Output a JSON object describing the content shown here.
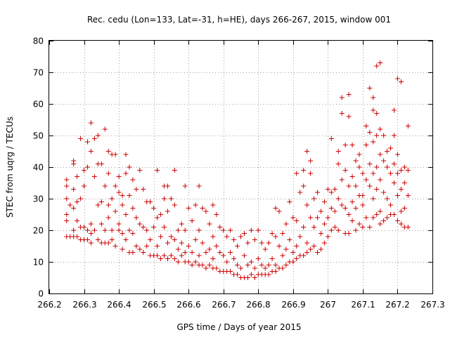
{
  "chart_data": {
    "type": "scatter",
    "title": "Rec. cedu (Lon=133, Lat=-31, h=HE), days 266-267, 2015, window 001",
    "xlabel": "GPS time / Days of year 2015",
    "ylabel": "STEC from uqrg / TECUs",
    "xlim": [
      266.2,
      267.3
    ],
    "ylim": [
      0,
      80
    ],
    "xticks": [
      266.2,
      266.3,
      266.4,
      266.5,
      266.6,
      266.7,
      266.8,
      266.9,
      267.0,
      267.1,
      267.2,
      267.3
    ],
    "xtick_labels": [
      "266.2",
      "266.3",
      "266.4",
      "266.5",
      "266.6",
      "266.7",
      "266.8",
      "266.9",
      "267",
      "267.1",
      "267.2",
      "267.3"
    ],
    "yticks": [
      0,
      10,
      20,
      30,
      40,
      50,
      60,
      70,
      80
    ],
    "ytick_labels": [
      "0",
      "10",
      "20",
      "30",
      "40",
      "50",
      "60",
      "70",
      "80"
    ],
    "grid": true,
    "marker": "+",
    "color": "#cc0000",
    "points": [
      [
        266.25,
        36
      ],
      [
        266.25,
        34
      ],
      [
        266.25,
        30
      ],
      [
        266.25,
        25
      ],
      [
        266.25,
        23
      ],
      [
        266.25,
        18
      ],
      [
        266.26,
        18
      ],
      [
        266.26,
        28
      ],
      [
        266.27,
        41
      ],
      [
        266.27,
        42
      ],
      [
        266.27,
        33
      ],
      [
        266.27,
        27
      ],
      [
        266.27,
        20
      ],
      [
        266.27,
        18
      ],
      [
        266.28,
        18
      ],
      [
        266.28,
        29
      ],
      [
        266.28,
        37
      ],
      [
        266.28,
        23
      ],
      [
        266.29,
        49
      ],
      [
        266.29,
        30
      ],
      [
        266.29,
        17
      ],
      [
        266.29,
        21
      ],
      [
        266.3,
        39
      ],
      [
        266.3,
        34
      ],
      [
        266.3,
        21
      ],
      [
        266.3,
        17
      ],
      [
        266.31,
        48
      ],
      [
        266.31,
        40
      ],
      [
        266.31,
        20
      ],
      [
        266.31,
        17
      ],
      [
        266.32,
        54
      ],
      [
        266.32,
        45
      ],
      [
        266.32,
        22
      ],
      [
        266.32,
        19
      ],
      [
        266.32,
        16
      ],
      [
        266.33,
        49
      ],
      [
        266.33,
        37
      ],
      [
        266.33,
        20
      ],
      [
        266.34,
        50
      ],
      [
        266.34,
        41
      ],
      [
        266.34,
        28
      ],
      [
        266.34,
        17
      ],
      [
        266.35,
        41
      ],
      [
        266.35,
        29
      ],
      [
        266.35,
        22
      ],
      [
        266.35,
        16
      ],
      [
        266.36,
        52
      ],
      [
        266.36,
        34
      ],
      [
        266.36,
        20
      ],
      [
        266.36,
        16
      ],
      [
        266.37,
        45
      ],
      [
        266.37,
        38
      ],
      [
        266.37,
        28
      ],
      [
        266.37,
        24
      ],
      [
        266.37,
        16
      ],
      [
        266.38,
        44
      ],
      [
        266.38,
        30
      ],
      [
        266.38,
        20
      ],
      [
        266.38,
        17
      ],
      [
        266.39,
        44
      ],
      [
        266.39,
        34
      ],
      [
        266.39,
        26
      ],
      [
        266.39,
        15
      ],
      [
        266.4,
        37
      ],
      [
        266.4,
        32
      ],
      [
        266.4,
        22
      ],
      [
        266.4,
        20
      ],
      [
        266.41,
        31
      ],
      [
        266.41,
        28
      ],
      [
        266.41,
        19
      ],
      [
        266.41,
        14
      ],
      [
        266.42,
        44
      ],
      [
        266.42,
        38
      ],
      [
        266.42,
        25
      ],
      [
        266.42,
        17
      ],
      [
        266.43,
        40
      ],
      [
        266.43,
        31
      ],
      [
        266.43,
        20
      ],
      [
        266.43,
        13
      ],
      [
        266.44,
        36
      ],
      [
        266.44,
        27
      ],
      [
        266.44,
        19
      ],
      [
        266.44,
        13
      ],
      [
        266.45,
        33
      ],
      [
        266.45,
        24
      ],
      [
        266.45,
        15
      ],
      [
        266.46,
        39
      ],
      [
        266.46,
        22
      ],
      [
        266.46,
        14
      ],
      [
        266.47,
        33
      ],
      [
        266.47,
        21
      ],
      [
        266.47,
        13
      ],
      [
        266.48,
        29
      ],
      [
        266.48,
        20
      ],
      [
        266.48,
        15
      ],
      [
        266.49,
        29
      ],
      [
        266.49,
        17
      ],
      [
        266.49,
        12
      ],
      [
        266.5,
        27
      ],
      [
        266.5,
        21
      ],
      [
        266.5,
        12
      ],
      [
        266.51,
        39
      ],
      [
        266.51,
        24
      ],
      [
        266.51,
        15
      ],
      [
        266.51,
        12
      ],
      [
        266.52,
        25
      ],
      [
        266.52,
        18
      ],
      [
        266.52,
        11
      ],
      [
        266.53,
        34
      ],
      [
        266.53,
        30
      ],
      [
        266.53,
        21
      ],
      [
        266.53,
        12
      ],
      [
        266.54,
        34
      ],
      [
        266.54,
        26
      ],
      [
        266.54,
        16
      ],
      [
        266.54,
        11
      ],
      [
        266.55,
        30
      ],
      [
        266.55,
        18
      ],
      [
        266.55,
        12
      ],
      [
        266.56,
        39
      ],
      [
        266.56,
        28
      ],
      [
        266.56,
        17
      ],
      [
        266.56,
        11
      ],
      [
        266.57,
        20
      ],
      [
        266.57,
        14
      ],
      [
        266.57,
        10
      ],
      [
        266.58,
        22
      ],
      [
        266.58,
        16
      ],
      [
        266.58,
        12
      ],
      [
        266.59,
        34
      ],
      [
        266.59,
        20
      ],
      [
        266.59,
        13
      ],
      [
        266.59,
        10
      ],
      [
        266.6,
        27
      ],
      [
        266.6,
        15
      ],
      [
        266.6,
        10
      ],
      [
        266.61,
        23
      ],
      [
        266.61,
        13
      ],
      [
        266.61,
        9
      ],
      [
        266.62,
        28
      ],
      [
        266.62,
        17
      ],
      [
        266.62,
        10
      ],
      [
        266.63,
        34
      ],
      [
        266.63,
        20
      ],
      [
        266.63,
        12
      ],
      [
        266.63,
        9
      ],
      [
        266.64,
        27
      ],
      [
        266.64,
        16
      ],
      [
        266.64,
        9
      ],
      [
        266.65,
        26
      ],
      [
        266.65,
        13
      ],
      [
        266.65,
        8
      ],
      [
        266.66,
        22
      ],
      [
        266.66,
        14
      ],
      [
        266.66,
        9
      ],
      [
        266.67,
        28
      ],
      [
        266.67,
        18
      ],
      [
        266.67,
        11
      ],
      [
        266.67,
        8
      ],
      [
        266.68,
        25
      ],
      [
        266.68,
        15
      ],
      [
        266.68,
        8
      ],
      [
        266.69,
        21
      ],
      [
        266.69,
        13
      ],
      [
        266.69,
        7
      ],
      [
        266.7,
        20
      ],
      [
        266.7,
        12
      ],
      [
        266.7,
        7
      ],
      [
        266.71,
        18
      ],
      [
        266.71,
        10
      ],
      [
        266.71,
        7
      ],
      [
        266.72,
        20
      ],
      [
        266.72,
        13
      ],
      [
        266.72,
        7
      ],
      [
        266.73,
        17
      ],
      [
        266.73,
        11
      ],
      [
        266.73,
        6
      ],
      [
        266.74,
        15
      ],
      [
        266.74,
        9
      ],
      [
        266.74,
        6
      ],
      [
        266.75,
        18
      ],
      [
        266.75,
        8
      ],
      [
        266.75,
        5
      ],
      [
        266.76,
        19
      ],
      [
        266.76,
        12
      ],
      [
        266.76,
        5
      ],
      [
        266.77,
        16
      ],
      [
        266.77,
        9
      ],
      [
        266.77,
        5
      ],
      [
        266.78,
        20
      ],
      [
        266.78,
        10
      ],
      [
        266.78,
        6
      ],
      [
        266.79,
        17
      ],
      [
        266.79,
        8
      ],
      [
        266.79,
        5
      ],
      [
        266.8,
        20
      ],
      [
        266.8,
        11
      ],
      [
        266.8,
        6
      ],
      [
        266.81,
        16
      ],
      [
        266.81,
        9
      ],
      [
        266.81,
        6
      ],
      [
        266.82,
        14
      ],
      [
        266.82,
        8
      ],
      [
        266.82,
        6
      ],
      [
        266.83,
        16
      ],
      [
        266.83,
        9
      ],
      [
        266.83,
        6
      ],
      [
        266.84,
        19
      ],
      [
        266.84,
        11
      ],
      [
        266.84,
        7
      ],
      [
        266.85,
        27
      ],
      [
        266.85,
        18
      ],
      [
        266.85,
        9
      ],
      [
        266.85,
        7
      ],
      [
        266.86,
        26
      ],
      [
        266.86,
        15
      ],
      [
        266.86,
        8
      ],
      [
        266.87,
        19
      ],
      [
        266.87,
        12
      ],
      [
        266.87,
        8
      ],
      [
        266.88,
        22
      ],
      [
        266.88,
        14
      ],
      [
        266.88,
        9
      ],
      [
        266.89,
        29
      ],
      [
        266.89,
        17
      ],
      [
        266.89,
        10
      ],
      [
        266.9,
        24
      ],
      [
        266.9,
        13
      ],
      [
        266.9,
        10
      ],
      [
        266.91,
        38
      ],
      [
        266.91,
        23
      ],
      [
        266.91,
        15
      ],
      [
        266.91,
        11
      ],
      [
        266.92,
        32
      ],
      [
        266.92,
        18
      ],
      [
        266.92,
        12
      ],
      [
        266.93,
        39
      ],
      [
        266.93,
        34
      ],
      [
        266.93,
        21
      ],
      [
        266.93,
        12
      ],
      [
        266.94,
        45
      ],
      [
        266.94,
        28
      ],
      [
        266.94,
        16
      ],
      [
        266.94,
        13
      ],
      [
        266.95,
        42
      ],
      [
        266.95,
        38
      ],
      [
        266.95,
        24
      ],
      [
        266.95,
        14
      ],
      [
        266.96,
        30
      ],
      [
        266.96,
        21
      ],
      [
        266.96,
        15
      ],
      [
        266.97,
        32
      ],
      [
        266.97,
        24
      ],
      [
        266.97,
        13
      ],
      [
        266.98,
        26
      ],
      [
        266.98,
        19
      ],
      [
        266.98,
        14
      ],
      [
        266.99,
        29
      ],
      [
        266.99,
        22
      ],
      [
        266.99,
        16
      ],
      [
        267.0,
        33
      ],
      [
        267.0,
        24
      ],
      [
        267.0,
        18
      ],
      [
        267.01,
        49
      ],
      [
        267.01,
        32
      ],
      [
        267.01,
        27
      ],
      [
        267.01,
        20
      ],
      [
        267.02,
        33
      ],
      [
        267.02,
        26
      ],
      [
        267.02,
        21
      ],
      [
        267.03,
        45
      ],
      [
        267.03,
        41
      ],
      [
        267.03,
        30
      ],
      [
        267.03,
        20
      ],
      [
        267.04,
        62
      ],
      [
        267.04,
        57
      ],
      [
        267.04,
        36
      ],
      [
        267.04,
        28
      ],
      [
        267.05,
        47
      ],
      [
        267.05,
        39
      ],
      [
        267.05,
        27
      ],
      [
        267.05,
        19
      ],
      [
        267.06,
        63
      ],
      [
        267.06,
        56
      ],
      [
        267.06,
        34
      ],
      [
        267.06,
        25
      ],
      [
        267.06,
        19
      ],
      [
        267.07,
        47
      ],
      [
        267.07,
        37
      ],
      [
        267.07,
        29
      ],
      [
        267.07,
        23
      ],
      [
        267.08,
        42
      ],
      [
        267.08,
        34
      ],
      [
        267.08,
        27
      ],
      [
        267.08,
        20
      ],
      [
        267.09,
        44
      ],
      [
        267.09,
        40
      ],
      [
        267.09,
        31
      ],
      [
        267.09,
        22
      ],
      [
        267.1,
        38
      ],
      [
        267.1,
        31
      ],
      [
        267.1,
        28
      ],
      [
        267.1,
        21
      ],
      [
        267.11,
        53
      ],
      [
        267.11,
        47
      ],
      [
        267.11,
        36
      ],
      [
        267.11,
        24
      ],
      [
        267.12,
        65
      ],
      [
        267.12,
        51
      ],
      [
        267.12,
        41
      ],
      [
        267.12,
        34
      ],
      [
        267.12,
        21
      ],
      [
        267.13,
        62
      ],
      [
        267.13,
        58
      ],
      [
        267.13,
        48
      ],
      [
        267.13,
        38
      ],
      [
        267.13,
        30
      ],
      [
        267.13,
        24
      ],
      [
        267.14,
        72
      ],
      [
        267.14,
        57
      ],
      [
        267.14,
        50
      ],
      [
        267.14,
        40
      ],
      [
        267.14,
        33
      ],
      [
        267.14,
        25
      ],
      [
        267.15,
        73
      ],
      [
        267.15,
        52
      ],
      [
        267.15,
        44
      ],
      [
        267.15,
        36
      ],
      [
        267.15,
        26
      ],
      [
        267.15,
        22
      ],
      [
        267.16,
        50
      ],
      [
        267.16,
        42
      ],
      [
        267.16,
        32
      ],
      [
        267.16,
        23
      ],
      [
        267.17,
        45
      ],
      [
        267.17,
        40
      ],
      [
        267.17,
        30
      ],
      [
        267.17,
        24
      ],
      [
        267.18,
        46
      ],
      [
        267.18,
        38
      ],
      [
        267.18,
        28
      ],
      [
        267.18,
        25
      ],
      [
        267.19,
        58
      ],
      [
        267.19,
        50
      ],
      [
        267.19,
        41
      ],
      [
        267.19,
        35
      ],
      [
        267.19,
        25
      ],
      [
        267.2,
        68
      ],
      [
        267.2,
        44
      ],
      [
        267.2,
        38
      ],
      [
        267.2,
        31
      ],
      [
        267.2,
        23
      ],
      [
        267.21,
        67
      ],
      [
        267.21,
        39
      ],
      [
        267.21,
        33
      ],
      [
        267.21,
        26
      ],
      [
        267.21,
        22
      ],
      [
        267.22,
        40
      ],
      [
        267.22,
        35
      ],
      [
        267.22,
        27
      ],
      [
        267.22,
        21
      ],
      [
        267.23,
        53
      ],
      [
        267.23,
        39
      ],
      [
        267.23,
        31
      ],
      [
        267.23,
        21
      ]
    ]
  }
}
